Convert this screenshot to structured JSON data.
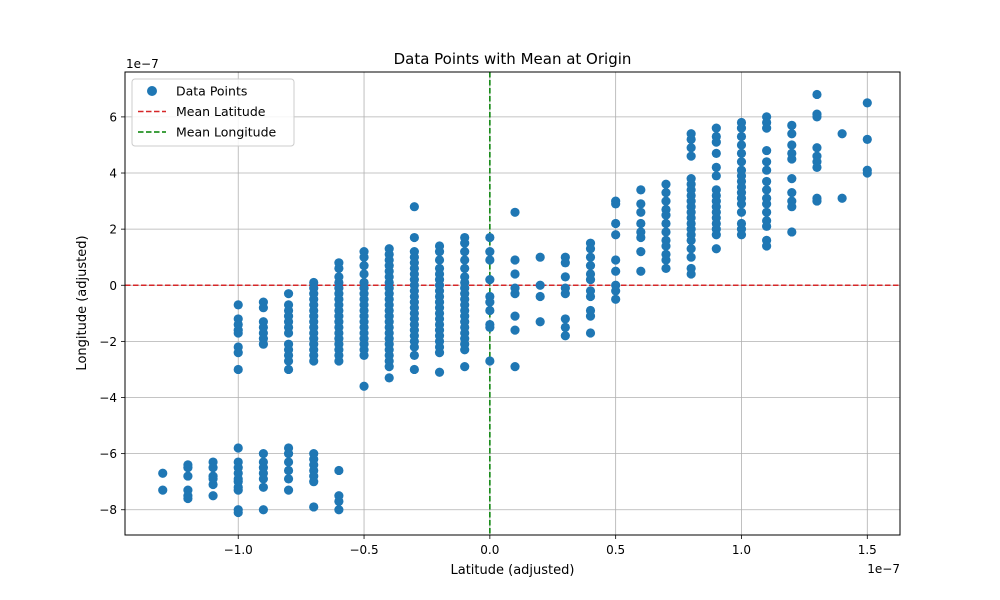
{
  "chart_data": {
    "type": "scatter",
    "title": "Data Points with Mean at Origin",
    "xlabel": "Latitude (adjusted)",
    "ylabel": "Longitude (adjusted)",
    "x_scale_text": "1e−7",
    "y_scale_text": "1e−7",
    "xlim": [
      -1.45,
      1.63
    ],
    "ylim": [
      -8.9,
      7.6
    ],
    "x_ticks": [
      -1.0,
      -0.5,
      0.0,
      0.5,
      1.0,
      1.5
    ],
    "x_tick_labels": [
      "−1.0",
      "−0.5",
      "0.0",
      "0.5",
      "1.0",
      "1.5"
    ],
    "y_ticks": [
      -8,
      -6,
      -4,
      -2,
      0,
      2,
      4,
      6
    ],
    "y_tick_labels": [
      "−8",
      "−6",
      "−4",
      "−2",
      "0",
      "2",
      "4",
      "6"
    ],
    "grid": true,
    "legend_position": "top-left",
    "colors": {
      "points": "#1f77b4",
      "mean_latitude": "#d62728",
      "mean_longitude": "#008000",
      "grid": "#b0b0b0"
    },
    "mean_latitude_y": 0,
    "mean_longitude_x": 0,
    "legend": {
      "data_points": "Data Points",
      "mean_latitude": "Mean Latitude",
      "mean_longitude": "Mean Longitude"
    },
    "point_columns": [
      {
        "x": -1.3,
        "y": [
          -6.7,
          -7.3
        ]
      },
      {
        "x": -1.2,
        "y": [
          -6.4,
          -6.5,
          -6.8,
          -7.3,
          -7.5,
          -7.6
        ]
      },
      {
        "x": -1.1,
        "y": [
          -6.3,
          -6.5,
          -6.8,
          -6.9,
          -7.1,
          -7.5
        ]
      },
      {
        "x": -1.0,
        "y": [
          -0.7,
          -1.2,
          -1.4,
          -1.6,
          -1.7,
          -2.2,
          -2.4,
          -3.0,
          -5.8,
          -6.3,
          -6.5,
          -6.7,
          -6.9,
          -7.0,
          -7.2,
          -7.3,
          -8.0,
          -8.1
        ]
      },
      {
        "x": -0.9,
        "y": [
          -0.6,
          -0.8,
          -1.3,
          -1.5,
          -1.7,
          -1.9,
          -2.1,
          -6.0,
          -6.3,
          -6.5,
          -6.7,
          -6.9,
          -7.2,
          -8.0
        ]
      },
      {
        "x": -0.8,
        "y": [
          -0.3,
          -0.7,
          -0.9,
          -1.1,
          -1.3,
          -1.5,
          -1.7,
          -2.1,
          -2.3,
          -2.5,
          -2.7,
          -3.0,
          -5.8,
          -6.0,
          -6.3,
          -6.6,
          -6.9,
          -7.3
        ]
      },
      {
        "x": -0.7,
        "y": [
          0.1,
          -0.1,
          -0.3,
          -0.5,
          -0.7,
          -0.9,
          -1.1,
          -1.3,
          -1.5,
          -1.7,
          -1.9,
          -2.1,
          -2.3,
          -2.5,
          -2.7,
          -6.0,
          -6.2,
          -6.4,
          -6.6,
          -6.8,
          -7.0,
          -7.9
        ]
      },
      {
        "x": -0.6,
        "y": [
          0.8,
          0.6,
          0.3,
          0.1,
          -0.1,
          -0.3,
          -0.5,
          -0.7,
          -0.9,
          -1.1,
          -1.3,
          -1.5,
          -1.7,
          -1.9,
          -2.1,
          -2.3,
          -2.5,
          -2.7,
          -6.6,
          -7.5,
          -7.7,
          -8.0
        ]
      },
      {
        "x": -0.5,
        "y": [
          1.2,
          1.0,
          0.7,
          0.4,
          0.1,
          -0.1,
          -0.3,
          -0.5,
          -0.7,
          -0.9,
          -1.1,
          -1.3,
          -1.5,
          -1.7,
          -1.9,
          -2.1,
          -2.3,
          -2.5,
          -3.6
        ]
      },
      {
        "x": -0.4,
        "y": [
          1.3,
          1.1,
          0.9,
          0.7,
          0.5,
          0.3,
          0.1,
          -0.1,
          -0.3,
          -0.5,
          -0.7,
          -0.9,
          -1.1,
          -1.3,
          -1.5,
          -1.7,
          -1.9,
          -2.1,
          -2.3,
          -2.5,
          -2.7,
          -2.9,
          -3.3
        ]
      },
      {
        "x": -0.3,
        "y": [
          2.8,
          1.7,
          1.2,
          1.0,
          0.8,
          0.6,
          0.4,
          0.2,
          0.0,
          -0.2,
          -0.4,
          -0.6,
          -0.8,
          -1.0,
          -1.2,
          -1.4,
          -1.6,
          -1.8,
          -2.0,
          -2.2,
          -2.5,
          -3.0
        ]
      },
      {
        "x": -0.2,
        "y": [
          1.4,
          1.2,
          0.9,
          0.6,
          0.4,
          0.2,
          0.0,
          -0.2,
          -0.4,
          -0.6,
          -0.8,
          -1.0,
          -1.2,
          -1.4,
          -1.6,
          -1.8,
          -2.0,
          -2.2,
          -2.4,
          -3.1
        ]
      },
      {
        "x": -0.1,
        "y": [
          1.7,
          1.5,
          1.2,
          0.9,
          0.6,
          0.3,
          0.1,
          -0.1,
          -0.3,
          -0.5,
          -0.7,
          -0.9,
          -1.1,
          -1.3,
          -1.5,
          -1.7,
          -1.9,
          -2.1,
          -2.3,
          -2.9
        ]
      },
      {
        "x": 0.0,
        "y": [
          1.7,
          1.2,
          0.9,
          0.2,
          -0.4,
          -0.6,
          -0.9,
          -1.4,
          -1.5,
          -2.7
        ]
      },
      {
        "x": 0.1,
        "y": [
          2.6,
          0.9,
          0.4,
          -0.1,
          -0.3,
          -1.1,
          -1.6,
          -2.9
        ]
      },
      {
        "x": 0.2,
        "y": [
          1.0,
          0.0,
          -0.4,
          -1.3
        ]
      },
      {
        "x": 0.3,
        "y": [
          1.0,
          0.8,
          0.3,
          -0.1,
          -0.3,
          -1.2,
          -1.5,
          -1.8
        ]
      },
      {
        "x": 0.4,
        "y": [
          1.5,
          1.3,
          1.0,
          0.7,
          0.4,
          0.2,
          -0.2,
          -0.4,
          -0.9,
          -1.1,
          -1.7
        ]
      },
      {
        "x": 0.5,
        "y": [
          3.0,
          2.9,
          2.2,
          1.8,
          0.9,
          0.5,
          0.0,
          -0.2,
          -0.5
        ]
      },
      {
        "x": 0.6,
        "y": [
          3.4,
          2.9,
          2.6,
          2.2,
          1.9,
          1.7,
          1.2,
          0.5
        ]
      },
      {
        "x": 0.7,
        "y": [
          3.6,
          3.3,
          3.0,
          2.7,
          2.5,
          2.2,
          1.9,
          1.6,
          1.4,
          1.1,
          0.9,
          0.6
        ]
      },
      {
        "x": 0.8,
        "y": [
          5.4,
          5.2,
          4.9,
          4.6,
          3.8,
          3.6,
          3.4,
          3.2,
          3.0,
          2.8,
          2.6,
          2.4,
          2.2,
          2.0,
          1.8,
          1.6,
          1.3,
          1.0,
          0.6,
          0.4
        ]
      },
      {
        "x": 0.9,
        "y": [
          5.6,
          5.3,
          5.1,
          4.7,
          4.2,
          3.9,
          3.4,
          3.2,
          3.0,
          2.8,
          2.6,
          2.4,
          2.2,
          2.0,
          1.8,
          1.3
        ]
      },
      {
        "x": 1.0,
        "y": [
          5.8,
          5.6,
          5.3,
          5.0,
          4.7,
          4.4,
          4.1,
          3.9,
          3.7,
          3.5,
          3.3,
          3.1,
          2.9,
          2.6,
          2.2,
          2.0,
          1.8
        ]
      },
      {
        "x": 1.1,
        "y": [
          6.0,
          5.8,
          5.6,
          4.8,
          4.4,
          4.1,
          3.7,
          3.4,
          3.1,
          2.9,
          2.6,
          2.3,
          2.1,
          1.6,
          1.4
        ]
      },
      {
        "x": 1.2,
        "y": [
          5.7,
          5.4,
          5.0,
          4.7,
          4.5,
          3.8,
          3.3,
          3.0,
          2.8,
          1.9
        ]
      },
      {
        "x": 1.3,
        "y": [
          6.8,
          6.1,
          6.0,
          4.9,
          4.6,
          4.4,
          4.2,
          3.1,
          3.0
        ]
      },
      {
        "x": 1.4,
        "y": [
          5.4,
          3.1
        ]
      },
      {
        "x": 1.5,
        "y": [
          6.5,
          5.2,
          4.1,
          4.0
        ]
      }
    ]
  }
}
